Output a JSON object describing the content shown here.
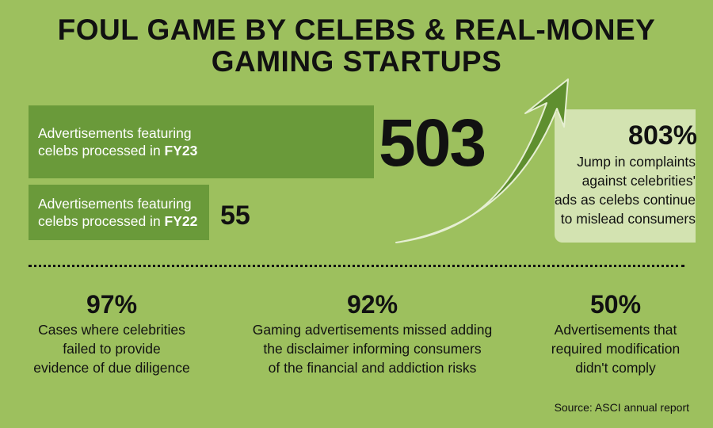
{
  "title": {
    "line1": "FOUL GAME BY CELEBS & REAL-MONEY",
    "line2": "GAMING STARTUPS"
  },
  "chart_data": {
    "type": "bar",
    "categories": [
      "FY23",
      "FY22"
    ],
    "values": [
      503,
      55
    ],
    "bars": [
      {
        "label_line1": "Advertisements featuring",
        "label_line2": "celebs processed in ",
        "year": "FY23",
        "value": "503"
      },
      {
        "label_line1": "Advertisements featuring",
        "label_line2": "celebs processed in ",
        "year": "FY22",
        "value": "55"
      }
    ]
  },
  "highlight": {
    "pct": "803%",
    "lines": [
      "Jump in complaints",
      "against celebrities'",
      "ads as celebs continue",
      "to mislead consumers"
    ]
  },
  "stats": [
    {
      "pct": "97%",
      "lines": [
        "Cases where celebrities",
        "failed to provide",
        "evidence of due diligence"
      ]
    },
    {
      "pct": "92%",
      "lines": [
        "Gaming advertisements missed adding",
        "the disclaimer informing consumers",
        "of the financial and addiction risks"
      ]
    },
    {
      "pct": "50%",
      "lines": [
        "Advertisements that",
        "required modification",
        "didn't comply"
      ]
    }
  ],
  "source": "Source: ASCI annual report",
  "colors": {
    "background": "#9dc05e",
    "bar": "#6a9a3a",
    "panel": "#d3e3b1",
    "arrow": "#5f8f2f"
  }
}
